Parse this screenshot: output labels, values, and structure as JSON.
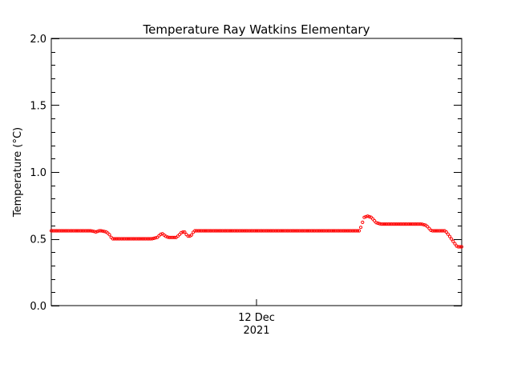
{
  "chart_data": {
    "type": "scatter",
    "title": "Temperature Ray Watkins Elementary",
    "ylabel": "Temperature (°C)",
    "ylim": [
      0.0,
      2.0
    ],
    "yticks": [
      "0.0",
      "0.5",
      "1.0",
      "1.5",
      "2.0"
    ],
    "yticks_values": [
      0.0,
      0.5,
      1.0,
      1.5,
      2.0
    ],
    "xlabel_major": "12 Dec",
    "xlabel_year": "2021",
    "grid": false,
    "marker_color": "#ff0000",
    "series": [
      {
        "x": [
          0.0,
          0.012,
          0.025,
          0.037,
          0.049,
          0.061,
          0.074,
          0.086,
          0.098,
          0.11,
          0.115,
          0.123,
          0.135,
          0.142,
          0.148,
          0.16,
          0.172,
          0.184,
          0.196,
          0.209,
          0.221,
          0.233,
          0.245,
          0.258,
          0.265,
          0.27,
          0.278,
          0.285,
          0.29,
          0.298,
          0.305,
          0.312,
          0.318,
          0.325,
          0.332,
          0.34,
          0.348,
          0.36,
          0.372,
          0.384,
          0.396,
          0.409,
          0.421,
          0.433,
          0.445,
          0.458,
          0.47,
          0.482,
          0.494,
          0.506,
          0.519,
          0.531,
          0.543,
          0.555,
          0.568,
          0.58,
          0.592,
          0.604,
          0.617,
          0.629,
          0.641,
          0.653,
          0.666,
          0.678,
          0.69,
          0.702,
          0.715,
          0.727,
          0.739,
          0.751,
          0.756,
          0.762,
          0.77,
          0.78,
          0.792,
          0.804,
          0.816,
          0.829,
          0.841,
          0.853,
          0.865,
          0.878,
          0.89,
          0.902,
          0.914,
          0.926,
          0.933,
          0.94,
          0.952,
          0.96,
          0.968,
          0.977,
          0.989,
          1.0
        ],
        "y": [
          0.56,
          0.56,
          0.56,
          0.56,
          0.56,
          0.56,
          0.56,
          0.56,
          0.56,
          0.55,
          0.56,
          0.56,
          0.55,
          0.53,
          0.5,
          0.5,
          0.5,
          0.5,
          0.5,
          0.5,
          0.5,
          0.5,
          0.5,
          0.51,
          0.53,
          0.54,
          0.52,
          0.51,
          0.51,
          0.51,
          0.51,
          0.53,
          0.55,
          0.55,
          0.52,
          0.52,
          0.56,
          0.56,
          0.56,
          0.56,
          0.56,
          0.56,
          0.56,
          0.56,
          0.56,
          0.56,
          0.56,
          0.56,
          0.56,
          0.56,
          0.56,
          0.56,
          0.56,
          0.56,
          0.56,
          0.56,
          0.56,
          0.56,
          0.56,
          0.56,
          0.56,
          0.56,
          0.56,
          0.56,
          0.56,
          0.56,
          0.56,
          0.56,
          0.56,
          0.56,
          0.6,
          0.66,
          0.67,
          0.66,
          0.62,
          0.61,
          0.61,
          0.61,
          0.61,
          0.61,
          0.61,
          0.61,
          0.61,
          0.61,
          0.6,
          0.56,
          0.56,
          0.56,
          0.56,
          0.56,
          0.53,
          0.49,
          0.44,
          0.44
        ]
      }
    ]
  }
}
